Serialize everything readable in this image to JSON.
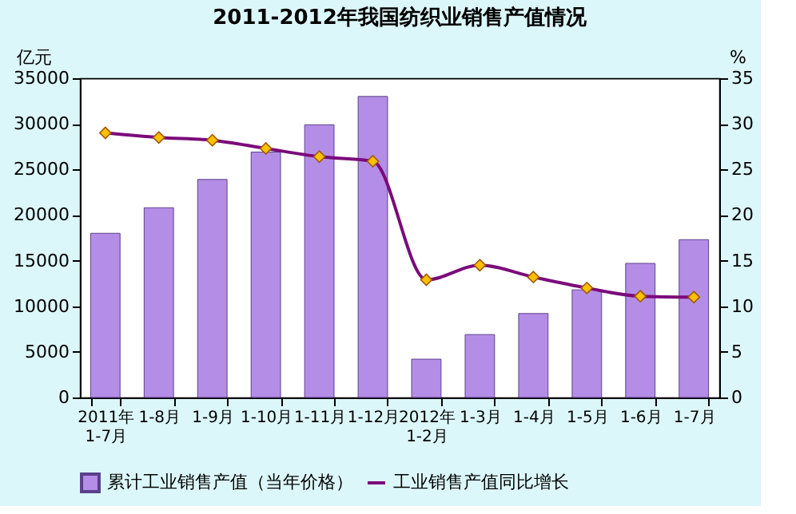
{
  "chart_data": {
    "type": "bar",
    "title": "2011-2012年我国纺织业销售产值情况",
    "ylabel": "亿元",
    "y2label": "%",
    "categories": [
      "2011年 1-7月",
      "1-8月",
      "1-9月",
      "1-10月",
      "1-11月",
      "1-12月",
      "2012年 1-2月",
      "1-3月",
      "1-4月",
      "1-5月",
      "1-6月",
      "1-7月"
    ],
    "series": [
      {
        "name": "累计工业销售产值（当年价格）",
        "color": "#b48ee6",
        "values": [
          18000,
          20800,
          23900,
          26900,
          29900,
          33000,
          4200,
          6900,
          9200,
          11800,
          14700,
          17300
        ]
      },
      {
        "name": "工业销售产值同比增长",
        "type": "line",
        "axis": "y2",
        "color": "#7b0a7b",
        "marker": "diamond",
        "values": [
          29.0,
          28.5,
          28.2,
          27.3,
          26.4,
          25.9,
          12.9,
          14.5,
          13.2,
          12.0,
          11.1,
          11.0
        ]
      }
    ],
    "ylim": [
      0,
      35000
    ],
    "yticks": [
      0,
      5000,
      10000,
      15000,
      20000,
      25000,
      30000,
      35000
    ],
    "y2lim": [
      0,
      35
    ],
    "y2ticks": [
      0,
      5,
      10,
      15,
      20,
      25,
      30,
      35
    ],
    "grid": false,
    "legend": "bottom"
  }
}
